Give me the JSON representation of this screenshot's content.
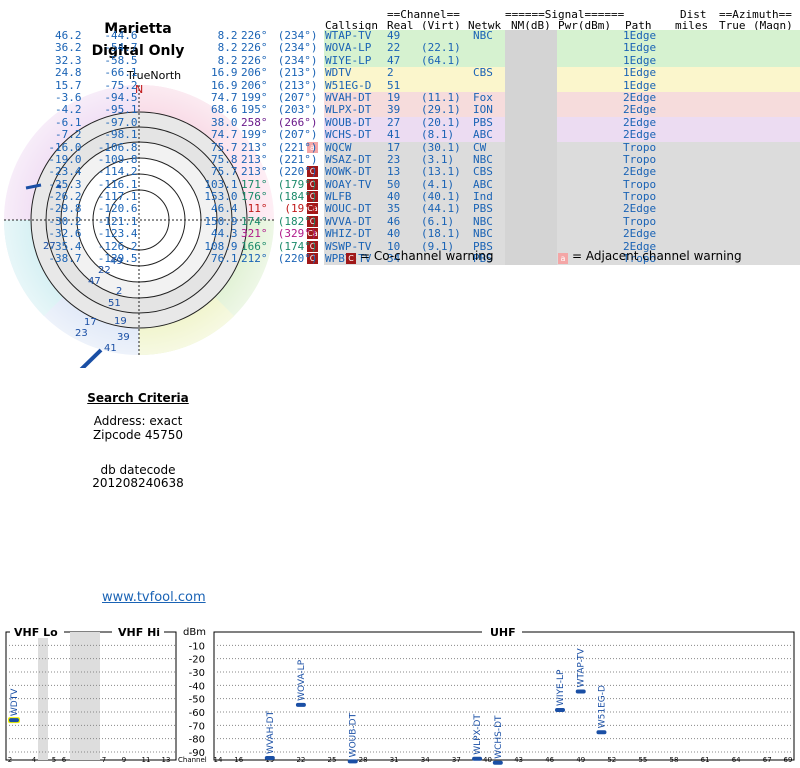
{
  "header": {
    "title1": "Marietta",
    "title2": "Digital Only",
    "true_north": "TrueNorth",
    "north_marker": "N"
  },
  "search": {
    "heading": "Search Criteria",
    "address": "Address: exact",
    "zipcode": "Zipcode 45750",
    "db_label": "db datecode",
    "db_value": "201208240638"
  },
  "link": "www.tvfool.com",
  "table": {
    "group_headers": {
      "channel": "==Channel==",
      "signal": "======Signal======",
      "dist": "Dist",
      "azimuth": "==Azimuth=="
    },
    "columns": {
      "callsign": "Callsign",
      "real": "Real",
      "virt": "(Virt)",
      "netwk": "Netwk",
      "nm": "NM(dB)",
      "pwr": "Pwr(dBm)",
      "path": "Path",
      "miles": "miles",
      "true": "True",
      "magn": "(Magn)"
    },
    "rows": [
      {
        "callsign": "WTAP-TV",
        "real": "49",
        "virt": "",
        "netwk": "NBC",
        "nm": "46.2",
        "pwr": "-44.6",
        "path": "1Edge",
        "dist": "8.2",
        "az_true": "226°",
        "az_magn": "(234°)",
        "band": "green",
        "warn": "",
        "az_color": "#1a63b5"
      },
      {
        "callsign": "WOVA-LP",
        "real": "22",
        "virt": "(22.1)",
        "netwk": "",
        "nm": "36.2",
        "pwr": "-54.7",
        "path": "1Edge",
        "dist": "8.2",
        "az_true": "226°",
        "az_magn": "(234°)",
        "band": "green",
        "warn": "",
        "az_color": "#1a63b5"
      },
      {
        "callsign": "WIYE-LP",
        "real": "47",
        "virt": "(64.1)",
        "netwk": "",
        "nm": "32.3",
        "pwr": "-58.5",
        "path": "1Edge",
        "dist": "8.2",
        "az_true": "226°",
        "az_magn": "(234°)",
        "band": "green",
        "warn": "",
        "az_color": "#1a63b5"
      },
      {
        "callsign": "WDTV",
        "real": "2",
        "virt": "",
        "netwk": "CBS",
        "nm": "24.8",
        "pwr": "-66.1",
        "path": "1Edge",
        "dist": "16.9",
        "az_true": "206°",
        "az_magn": "(213°)",
        "band": "yellow",
        "warn": "",
        "az_color": "#1a63b5"
      },
      {
        "callsign": "W51EG-D",
        "real": "51",
        "virt": "",
        "netwk": "",
        "nm": "15.7",
        "pwr": "-75.2",
        "path": "1Edge",
        "dist": "16.9",
        "az_true": "206°",
        "az_magn": "(213°)",
        "band": "yellow",
        "warn": "",
        "az_color": "#1a63b5"
      },
      {
        "callsign": "WVAH-DT",
        "real": "19",
        "virt": "(11.1)",
        "netwk": "Fox",
        "nm": "-3.6",
        "pwr": "-94.5",
        "path": "2Edge",
        "dist": "74.7",
        "az_true": "199°",
        "az_magn": "(207°)",
        "band": "red",
        "warn": "",
        "az_color": "#1a63b5"
      },
      {
        "callsign": "WLPX-DT",
        "real": "39",
        "virt": "(29.1)",
        "netwk": "ION",
        "nm": "-4.2",
        "pwr": "-95.1",
        "path": "2Edge",
        "dist": "68.6",
        "az_true": "195°",
        "az_magn": "(203°)",
        "band": "red",
        "warn": "",
        "az_color": "#1a63b5"
      },
      {
        "callsign": "WOUB-DT",
        "real": "27",
        "virt": "(20.1)",
        "netwk": "PBS",
        "nm": "-6.1",
        "pwr": "-97.0",
        "path": "2Edge",
        "dist": "38.0",
        "az_true": "258°",
        "az_magn": "(266°)",
        "band": "violet",
        "warn": "",
        "az_color": "#6a1a8a"
      },
      {
        "callsign": "WCHS-DT",
        "real": "41",
        "virt": "(8.1)",
        "netwk": "ABC",
        "nm": "-7.2",
        "pwr": "-98.1",
        "path": "2Edge",
        "dist": "74.7",
        "az_true": "199°",
        "az_magn": "(207°)",
        "band": "violet",
        "warn": "",
        "az_color": "#1a63b5"
      },
      {
        "callsign": "WQCW",
        "real": "17",
        "virt": "(30.1)",
        "netwk": "CW",
        "nm": "-16.0",
        "pwr": "-106.8",
        "path": "Tropo",
        "dist": "75.7",
        "az_true": "213°",
        "az_magn": "(221°)",
        "band": "gray",
        "warn": "a",
        "az_color": "#1a63b5"
      },
      {
        "callsign": "WSAZ-DT",
        "real": "23",
        "virt": "(3.1)",
        "netwk": "NBC",
        "nm": "-19.0",
        "pwr": "-109.8",
        "path": "Tropo",
        "dist": "75.8",
        "az_true": "213°",
        "az_magn": "(221°)",
        "band": "gray",
        "warn": "",
        "az_color": "#1a63b5"
      },
      {
        "callsign": "WOWK-DT",
        "real": "13",
        "virt": "(13.1)",
        "netwk": "CBS",
        "nm": "-23.4",
        "pwr": "-114.2",
        "path": "2Edge",
        "dist": "75.7",
        "az_true": "213°",
        "az_magn": "(220°)",
        "band": "gray",
        "warn": "c",
        "az_color": "#1a63b5"
      },
      {
        "callsign": "WOAY-TV",
        "real": "50",
        "virt": "(4.1)",
        "netwk": "ABC",
        "nm": "-25.3",
        "pwr": "-116.1",
        "path": "Tropo",
        "dist": "103.1",
        "az_true": "171°",
        "az_magn": "(179°)",
        "band": "gray",
        "warn": "c",
        "az_color": "#1a8a6a"
      },
      {
        "callsign": "WLFB",
        "real": "40",
        "virt": "(40.1)",
        "netwk": "Ind",
        "nm": "-26.2",
        "pwr": "-117.1",
        "path": "Tropo",
        "dist": "153.0",
        "az_true": "176°",
        "az_magn": "(184°)",
        "band": "gray",
        "warn": "c",
        "az_color": "#1a8a6a"
      },
      {
        "callsign": "WOUC-DT",
        "real": "35",
        "virt": "(44.1)",
        "netwk": "PBS",
        "nm": "-29.8",
        "pwr": "-120.6",
        "path": "2Edge",
        "dist": "46.4",
        "az_true": "11°",
        "az_magn": "(19°)",
        "band": "gray",
        "warn": "ca",
        "az_color": "#c01818"
      },
      {
        "callsign": "WVVA-DT",
        "real": "46",
        "virt": "(6.1)",
        "netwk": "NBC",
        "nm": "-30.2",
        "pwr": "-121.1",
        "path": "Tropo",
        "dist": "150.9",
        "az_true": "174°",
        "az_magn": "(182°)",
        "band": "gray",
        "warn": "c",
        "az_color": "#1a8a6a"
      },
      {
        "callsign": "WHIZ-DT",
        "real": "40",
        "virt": "(18.1)",
        "netwk": "NBC",
        "nm": "-32.6",
        "pwr": "-123.4",
        "path": "2Edge",
        "dist": "44.3",
        "az_true": "321°",
        "az_magn": "(329°)",
        "band": "gray",
        "warn": "ca",
        "az_color": "#b0188a"
      },
      {
        "callsign": "WSWP-TV",
        "real": "10",
        "virt": "(9.1)",
        "netwk": "PBS",
        "nm": "-35.4",
        "pwr": "-126.2",
        "path": "2Edge",
        "dist": "108.9",
        "az_true": "166°",
        "az_magn": "(174°)",
        "band": "gray",
        "warn": "c",
        "az_color": "#1a8a6a"
      },
      {
        "callsign": "WPBY-TV",
        "real": "34",
        "virt": "",
        "netwk": "PBS",
        "nm": "-38.7",
        "pwr": "-129.5",
        "path": "Tropo",
        "dist": "76.1",
        "az_true": "212°",
        "az_magn": "(220°)",
        "band": "gray",
        "warn": "c",
        "az_color": "#1a63b5"
      }
    ]
  },
  "legend": {
    "co_glyph": "C",
    "co": "= Co-channel warning",
    "adj_glyph": "a",
    "adj": "= Adjacent channel warning"
  },
  "polar": {
    "labels": [
      "27",
      "49",
      "22",
      "47",
      "2",
      "51",
      "17",
      "19",
      "23",
      "39",
      "41"
    ]
  },
  "bands": {
    "vhf_lo": "VHF Lo",
    "vhf_hi": "VHF Hi",
    "uhf": "UHF"
  },
  "spectrum": {
    "y_unit": "dBm",
    "y_ticks": [
      "-10",
      "-20",
      "-30",
      "-40",
      "-50",
      "-60",
      "-70",
      "-80",
      "-90"
    ],
    "vhf_x": [
      "2",
      "4",
      "5",
      "6",
      "7",
      "9",
      "11",
      "13"
    ],
    "uhf_axis_label": "Channel",
    "uhf_x": [
      "14",
      "16",
      "19",
      "22",
      "25",
      "28",
      "31",
      "34",
      "37",
      "40",
      "43",
      "46",
      "49",
      "52",
      "55",
      "58",
      "61",
      "64",
      "67",
      "69"
    ],
    "vhf_stations": [
      {
        "name": "WDTV",
        "channel": 2,
        "dbm": -66.1
      }
    ],
    "uhf_stations": [
      {
        "name": "WVAH-DT",
        "channel": 19,
        "dbm": -94.5
      },
      {
        "name": "WOVA-LP",
        "channel": 22,
        "dbm": -54.7
      },
      {
        "name": "WOUB-DT",
        "channel": 27,
        "dbm": -97.0
      },
      {
        "name": "WLPX-DT",
        "channel": 39,
        "dbm": -95.1
      },
      {
        "name": "WCHS-DT",
        "channel": 41,
        "dbm": -98.1
      },
      {
        "name": "WIYE-LP",
        "channel": 47,
        "dbm": -58.5
      },
      {
        "name": "WTAP-TV",
        "channel": 49,
        "dbm": -44.6
      },
      {
        "name": "W51EG-D",
        "channel": 51,
        "dbm": -75.2
      }
    ]
  }
}
